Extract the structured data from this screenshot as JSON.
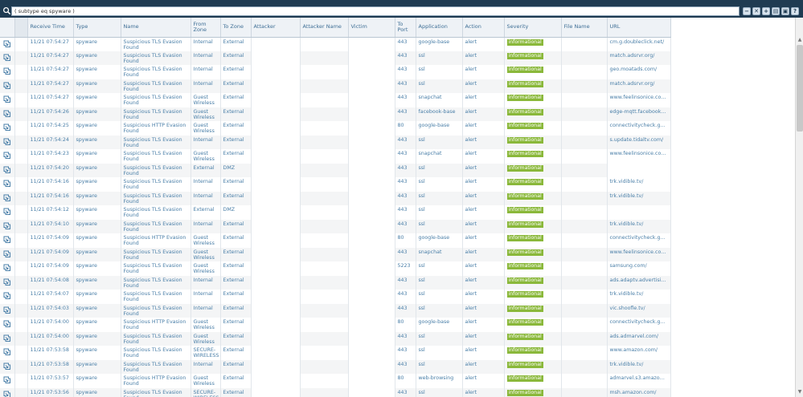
{
  "filter": {
    "query": "( subtype eq spyware )",
    "buttons": [
      "−",
      "✕",
      "+",
      "▤",
      "▣",
      "?"
    ]
  },
  "table": {
    "columns": {
      "receive_time": "Receive Time",
      "type": "Type",
      "name": "Name",
      "from_zone": "From Zone",
      "to_zone": "To Zone",
      "attacker": "Attacker",
      "attacker_name": "Attacker Name",
      "victim": "Victim",
      "to_port": "To Port",
      "application": "Application",
      "action": "Action",
      "severity": "Severity",
      "file_name": "File Name",
      "url": "URL"
    },
    "rows": [
      {
        "time": "11/21 07:54:27",
        "type": "spyware",
        "name": "Suspicious TLS Evasion Found",
        "from": "Internal",
        "to": "External",
        "port": "443",
        "app": "google-base",
        "action": "alert",
        "sev": "informational",
        "url": "cm.g.doubleclick.net/"
      },
      {
        "time": "11/21 07:54:27",
        "type": "spyware",
        "name": "Suspicious TLS Evasion Found",
        "from": "Internal",
        "to": "External",
        "port": "443",
        "app": "ssl",
        "action": "alert",
        "sev": "informational",
        "url": "match.adsrvr.org/"
      },
      {
        "time": "11/21 07:54:27",
        "type": "spyware",
        "name": "Suspicious TLS Evasion Found",
        "from": "Internal",
        "to": "External",
        "port": "443",
        "app": "ssl",
        "action": "alert",
        "sev": "informational",
        "url": "geo.moatads.com/"
      },
      {
        "time": "11/21 07:54:27",
        "type": "spyware",
        "name": "Suspicious TLS Evasion Found",
        "from": "Internal",
        "to": "External",
        "port": "443",
        "app": "ssl",
        "action": "alert",
        "sev": "informational",
        "url": "match.adsrvr.org/"
      },
      {
        "time": "11/21 07:54:27",
        "type": "spyware",
        "name": "Suspicious TLS Evasion Found",
        "from": "Guest Wireless",
        "to": "External",
        "port": "443",
        "app": "snapchat",
        "action": "alert",
        "sev": "informational",
        "url": "www.feelinsonice.com/"
      },
      {
        "time": "11/21 07:54:26",
        "type": "spyware",
        "name": "Suspicious TLS Evasion Found",
        "from": "Guest Wireless",
        "to": "External",
        "port": "443",
        "app": "facebook-base",
        "action": "alert",
        "sev": "informational",
        "url": "edge-mqtt.facebook.com/"
      },
      {
        "time": "11/21 07:54:25",
        "type": "spyware",
        "name": "Suspicious HTTP Evasion Found",
        "from": "Guest Wireless",
        "to": "External",
        "port": "80",
        "app": "google-base",
        "action": "alert",
        "sev": "informational",
        "url": "connectivitycheck.gstatic.com/"
      },
      {
        "time": "11/21 07:54:24",
        "type": "spyware",
        "name": "Suspicious TLS Evasion Found",
        "from": "Internal",
        "to": "External",
        "port": "443",
        "app": "ssl",
        "action": "alert",
        "sev": "informational",
        "url": "s.update.tidaltv.com/"
      },
      {
        "time": "11/21 07:54:23",
        "type": "spyware",
        "name": "Suspicious TLS Evasion Found",
        "from": "Guest Wireless",
        "to": "External",
        "port": "443",
        "app": "snapchat",
        "action": "alert",
        "sev": "informational",
        "url": "www.feelinsonice.com/"
      },
      {
        "time": "11/21 07:54:20",
        "type": "spyware",
        "name": "Suspicious TLS Evasion Found",
        "from": "External",
        "to": "DMZ",
        "port": "443",
        "app": "ssl",
        "action": "alert",
        "sev": "informational",
        "url": ""
      },
      {
        "time": "11/21 07:54:16",
        "type": "spyware",
        "name": "Suspicious TLS Evasion Found",
        "from": "Internal",
        "to": "External",
        "port": "443",
        "app": "ssl",
        "action": "alert",
        "sev": "informational",
        "url": "trk.vidible.tv/"
      },
      {
        "time": "11/21 07:54:16",
        "type": "spyware",
        "name": "Suspicious TLS Evasion Found",
        "from": "Internal",
        "to": "External",
        "port": "443",
        "app": "ssl",
        "action": "alert",
        "sev": "informational",
        "url": "trk.vidible.tv/"
      },
      {
        "time": "11/21 07:54:12",
        "type": "spyware",
        "name": "Suspicious TLS Evasion Found",
        "from": "External",
        "to": "DMZ",
        "port": "443",
        "app": "ssl",
        "action": "alert",
        "sev": "informational",
        "url": ""
      },
      {
        "time": "11/21 07:54:10",
        "type": "spyware",
        "name": "Suspicious TLS Evasion Found",
        "from": "Internal",
        "to": "External",
        "port": "443",
        "app": "ssl",
        "action": "alert",
        "sev": "informational",
        "url": "trk.vidible.tv/"
      },
      {
        "time": "11/21 07:54:09",
        "type": "spyware",
        "name": "Suspicious HTTP Evasion Found",
        "from": "Guest Wireless",
        "to": "External",
        "port": "80",
        "app": "google-base",
        "action": "alert",
        "sev": "informational",
        "url": "connectivitycheck.gstatic.com/"
      },
      {
        "time": "11/21 07:54:09",
        "type": "spyware",
        "name": "Suspicious TLS Evasion Found",
        "from": "Guest Wireless",
        "to": "External",
        "port": "443",
        "app": "snapchat",
        "action": "alert",
        "sev": "informational",
        "url": "www.feelinsonice.com/"
      },
      {
        "time": "11/21 07:54:09",
        "type": "spyware",
        "name": "Suspicious TLS Evasion Found",
        "from": "Guest Wireless",
        "to": "External",
        "port": "5223",
        "app": "ssl",
        "action": "alert",
        "sev": "informational",
        "url": "samsung.com/"
      },
      {
        "time": "11/21 07:54:08",
        "type": "spyware",
        "name": "Suspicious TLS Evasion Found",
        "from": "Internal",
        "to": "External",
        "port": "443",
        "app": "ssl",
        "action": "alert",
        "sev": "informational",
        "url": "ads.adaptv.advertising.com/"
      },
      {
        "time": "11/21 07:54:07",
        "type": "spyware",
        "name": "Suspicious TLS Evasion Found",
        "from": "Internal",
        "to": "External",
        "port": "443",
        "app": "ssl",
        "action": "alert",
        "sev": "informational",
        "url": "trk.vidible.tv/"
      },
      {
        "time": "11/21 07:54:03",
        "type": "spyware",
        "name": "Suspicious TLS Evasion Found",
        "from": "Internal",
        "to": "External",
        "port": "443",
        "app": "ssl",
        "action": "alert",
        "sev": "informational",
        "url": "vic.shoofle.tv/"
      },
      {
        "time": "11/21 07:54:00",
        "type": "spyware",
        "name": "Suspicious HTTP Evasion Found",
        "from": "Guest Wireless",
        "to": "External",
        "port": "80",
        "app": "google-base",
        "action": "alert",
        "sev": "informational",
        "url": "connectivitycheck.gstatic.com/"
      },
      {
        "time": "11/21 07:54:00",
        "type": "spyware",
        "name": "Suspicious TLS Evasion Found",
        "from": "Guest Wireless",
        "to": "External",
        "port": "443",
        "app": "ssl",
        "action": "alert",
        "sev": "informational",
        "url": "ads.admarvel.com/"
      },
      {
        "time": "11/21 07:53:58",
        "type": "spyware",
        "name": "Suspicious TLS Evasion Found",
        "from": "SECURE-WIRELESS",
        "to": "External",
        "port": "443",
        "app": "ssl",
        "action": "alert",
        "sev": "informational",
        "url": "www.amazon.com/"
      },
      {
        "time": "11/21 07:53:58",
        "type": "spyware",
        "name": "Suspicious TLS Evasion Found",
        "from": "Internal",
        "to": "External",
        "port": "443",
        "app": "ssl",
        "action": "alert",
        "sev": "informational",
        "url": "trk.vidible.tv/"
      },
      {
        "time": "11/21 07:53:57",
        "type": "spyware",
        "name": "Suspicious HTTP Evasion Found",
        "from": "Guest Wireless",
        "to": "External",
        "port": "80",
        "app": "web-browsing",
        "action": "alert",
        "sev": "informational",
        "url": "admarvel.s3.amazonaws.com/"
      },
      {
        "time": "11/21 07:53:56",
        "type": "spyware",
        "name": "Suspicious TLS Evasion Found",
        "from": "SECURE-WIRELESS",
        "to": "External",
        "port": "443",
        "app": "ssl",
        "action": "alert",
        "sev": "informational",
        "url": "msh.amazon.com/"
      }
    ]
  }
}
